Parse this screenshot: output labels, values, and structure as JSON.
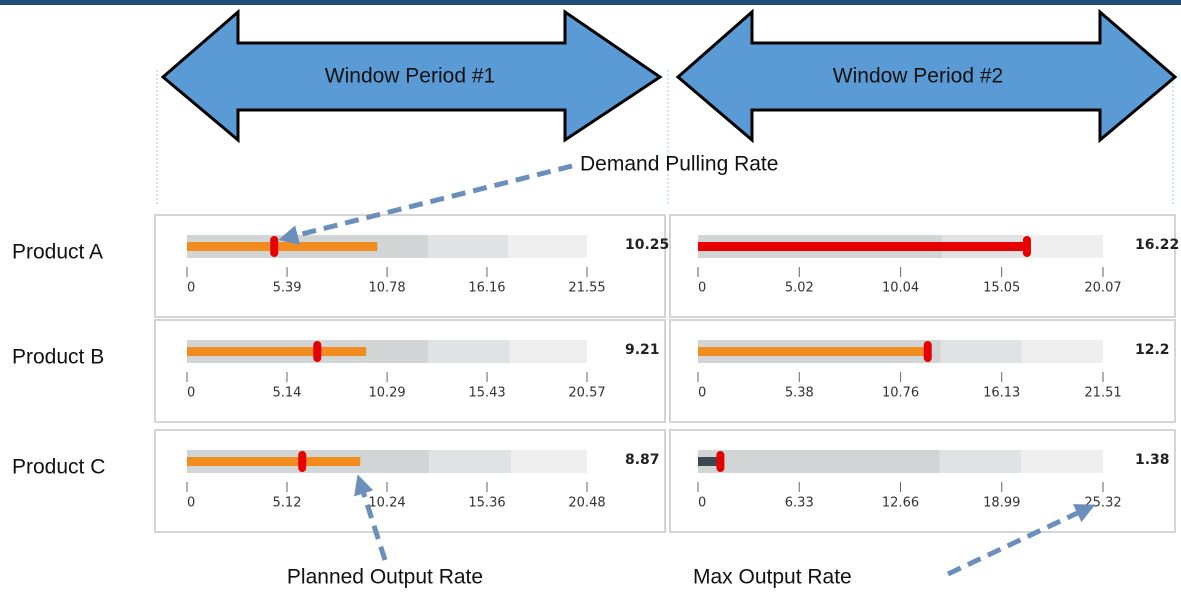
{
  "headers": [
    "Window Period #1",
    "Window Period #2"
  ],
  "annotations": {
    "demand": "Demand Pulling Rate",
    "planned": "Planned Output Rate",
    "max": "Max Output Rate"
  },
  "rows": [
    {
      "label": "Product A",
      "charts": [
        {
          "type": "bullet",
          "value": 10.25,
          "marker": 4.7,
          "ranges": [
            13,
            17.3,
            21.55
          ],
          "xlim": [
            0,
            21.55
          ],
          "xticks": [
            0,
            5.39,
            10.78,
            16.16,
            21.55
          ],
          "color": "#f28c1e",
          "marker_color": "#e60000"
        },
        {
          "type": "bullet",
          "value": 16.22,
          "marker": 16.3,
          "ranges": [
            12.1,
            16.1,
            20.07
          ],
          "xlim": [
            0,
            20.07
          ],
          "xticks": [
            0,
            5.02,
            10.04,
            15.05,
            20.07
          ],
          "color": "#e60000",
          "marker_color": "#e60000"
        }
      ]
    },
    {
      "label": "Product B",
      "charts": [
        {
          "type": "bullet",
          "value": 9.21,
          "marker": 6.7,
          "ranges": [
            12.4,
            16.6,
            20.57
          ],
          "xlim": [
            0,
            20.57
          ],
          "xticks": [
            0,
            5.14,
            10.29,
            15.43,
            20.57
          ],
          "color": "#f28c1e",
          "marker_color": "#e60000"
        },
        {
          "type": "bullet",
          "value": 12.2,
          "marker": 12.2,
          "ranges": [
            12.9,
            17.2,
            21.51
          ],
          "xlim": [
            0,
            21.51
          ],
          "xticks": [
            0,
            5.38,
            10.76,
            16.13,
            21.51
          ],
          "color": "#f28c1e",
          "marker_color": "#e60000"
        }
      ]
    },
    {
      "label": "Product C",
      "charts": [
        {
          "type": "bullet",
          "value": 8.87,
          "marker": 5.9,
          "ranges": [
            12.4,
            16.6,
            20.48
          ],
          "xlim": [
            0,
            20.48
          ],
          "xticks": [
            0,
            5.12,
            10.24,
            15.36,
            20.48
          ],
          "color": "#f28c1e",
          "marker_color": "#e60000"
        },
        {
          "type": "bullet",
          "value": 1.38,
          "marker": 1.4,
          "ranges": [
            15.1,
            20.2,
            25.32
          ],
          "xlim": [
            0,
            25.32
          ],
          "xticks": [
            0,
            6.33,
            12.66,
            18.99,
            25.32
          ],
          "color": "#3a4a4f",
          "marker_color": "#e60000"
        }
      ]
    }
  ]
}
